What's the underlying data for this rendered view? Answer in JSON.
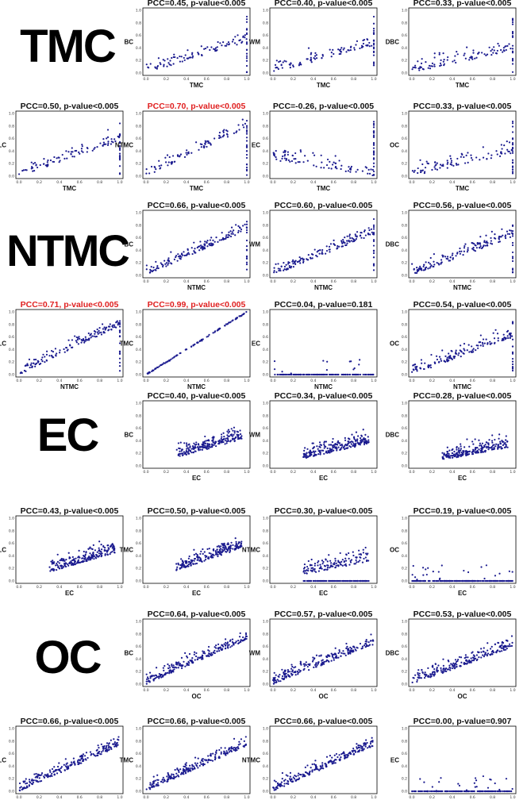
{
  "row_labels": [
    "TMC",
    "NTMC",
    "EC",
    "OC"
  ],
  "tick_labels": [
    "0.0",
    "0.2",
    "0.4",
    "0.6",
    "0.8",
    "1.0"
  ],
  "colors": {
    "point": "#1b1b8f",
    "title_default": "#111111",
    "title_highlight": "#e02020",
    "frame": "#000000"
  },
  "chart_data": [
    {
      "type": "scatter",
      "title": "PCC=0.45, p-value<0.005",
      "highlight": false,
      "xlabel": "TMC",
      "ylabel": "BC",
      "xlim": [
        0,
        1
      ],
      "ylim": [
        0,
        1
      ],
      "n": 110,
      "corr": 0.45,
      "cluster_x": 1.0,
      "cluster_share": 0.18,
      "seed": 1
    },
    {
      "type": "scatter",
      "title": "PCC=0.40, p-value<0.005",
      "highlight": false,
      "xlabel": "TMC",
      "ylabel": "WM",
      "xlim": [
        0,
        1
      ],
      "ylim": [
        0,
        1
      ],
      "n": 110,
      "corr": 0.4,
      "cluster_x": 1.0,
      "cluster_share": 0.2,
      "seed": 2
    },
    {
      "type": "scatter",
      "title": "PCC=0.33, p-value<0.005",
      "highlight": false,
      "xlabel": "TMC",
      "ylabel": "DBC",
      "xlim": [
        0,
        1
      ],
      "ylim": [
        0,
        1
      ],
      "n": 110,
      "corr": 0.33,
      "cluster_x": 1.0,
      "cluster_share": 0.18,
      "seed": 3
    },
    {
      "type": "scatter",
      "title": "PCC=0.50, p-value<0.005",
      "highlight": false,
      "xlabel": "TMC",
      "ylabel": "LC",
      "xlim": [
        0,
        1
      ],
      "ylim": [
        0,
        1
      ],
      "n": 110,
      "corr": 0.5,
      "cluster_x": 1.0,
      "cluster_share": 0.2,
      "seed": 4
    },
    {
      "type": "scatter",
      "title": "PCC=0.70, p-value<0.005",
      "highlight": true,
      "xlabel": "TMC",
      "ylabel": "NTMC",
      "xlim": [
        0,
        1
      ],
      "ylim": [
        0,
        1
      ],
      "n": 110,
      "corr": 0.7,
      "cluster_x": 1.0,
      "cluster_share": 0.2,
      "seed": 5
    },
    {
      "type": "scatter",
      "title": "PCC=-0.26, p-value<0.005",
      "highlight": false,
      "xlabel": "TMC",
      "ylabel": "EC",
      "xlim": [
        0,
        1
      ],
      "ylim": [
        0,
        1
      ],
      "n": 110,
      "corr": -0.26,
      "cluster_x": 1.0,
      "cluster_share": 0.25,
      "seed": 6
    },
    {
      "type": "scatter",
      "title": "PCC=0.33, p-value<0.005",
      "highlight": false,
      "xlabel": "TMC",
      "ylabel": "OC",
      "xlim": [
        0,
        1
      ],
      "ylim": [
        0,
        1
      ],
      "n": 110,
      "corr": 0.33,
      "cluster_x": 1.0,
      "cluster_share": 0.22,
      "seed": 7
    },
    {
      "type": "scatter",
      "title": "PCC=0.66, p-value<0.005",
      "highlight": false,
      "xlabel": "NTMC",
      "ylabel": "BC",
      "xlim": [
        0,
        1
      ],
      "ylim": [
        0,
        1
      ],
      "n": 160,
      "corr": 0.66,
      "cluster_x": 1.0,
      "cluster_share": 0.1,
      "seed": 11
    },
    {
      "type": "scatter",
      "title": "PCC=0.60, p-value<0.005",
      "highlight": false,
      "xlabel": "NTMC",
      "ylabel": "WM",
      "xlim": [
        0,
        1
      ],
      "ylim": [
        0,
        1
      ],
      "n": 160,
      "corr": 0.6,
      "cluster_x": 1.0,
      "cluster_share": 0.12,
      "seed": 12
    },
    {
      "type": "scatter",
      "title": "PCC=0.56, p-value<0.005",
      "highlight": false,
      "xlabel": "NTMC",
      "ylabel": "DBC",
      "xlim": [
        0,
        1
      ],
      "ylim": [
        0,
        1
      ],
      "n": 160,
      "corr": 0.56,
      "cluster_x": 1.0,
      "cluster_share": 0.1,
      "seed": 13
    },
    {
      "type": "scatter",
      "title": "PCC=0.71, p-value<0.005",
      "highlight": true,
      "xlabel": "NTMC",
      "ylabel": "LC",
      "xlim": [
        0,
        1
      ],
      "ylim": [
        0,
        1
      ],
      "n": 160,
      "corr": 0.71,
      "cluster_x": 1.0,
      "cluster_share": 0.12,
      "seed": 14
    },
    {
      "type": "scatter",
      "title": "PCC=0.99, p-value<0.005",
      "highlight": true,
      "xlabel": "NTMC",
      "ylabel": "TMC",
      "xlim": [
        0,
        1
      ],
      "ylim": [
        0,
        1
      ],
      "n": 110,
      "corr": 0.99,
      "cluster_x": null,
      "cluster_share": 0,
      "seed": 15
    },
    {
      "type": "scatter",
      "title": "PCC=0.04, p-value=0.181",
      "highlight": false,
      "xlabel": "NTMC",
      "ylabel": "EC",
      "xlim": [
        0,
        1
      ],
      "ylim": [
        0,
        1
      ],
      "n": 140,
      "corr": 0.0,
      "flat": true,
      "cluster_x": null,
      "cluster_share": 0,
      "seed": 16
    },
    {
      "type": "scatter",
      "title": "PCC=0.54, p-value<0.005",
      "highlight": false,
      "xlabel": "NTMC",
      "ylabel": "OC",
      "xlim": [
        0,
        1
      ],
      "ylim": [
        0,
        1
      ],
      "n": 160,
      "corr": 0.54,
      "cluster_x": 1.0,
      "cluster_share": 0.1,
      "seed": 17
    },
    {
      "type": "scatter",
      "title": "PCC=0.40, p-value<0.005",
      "highlight": false,
      "xlabel": "EC",
      "ylabel": "BC",
      "xlim": [
        0,
        1
      ],
      "ylim": [
        0,
        1
      ],
      "n": 220,
      "corr": 0.4,
      "cluster_x": null,
      "cluster_share": 0,
      "seed": 21
    },
    {
      "type": "scatter",
      "title": "PCC=0.34, p-value<0.005",
      "highlight": false,
      "xlabel": "EC",
      "ylabel": "WM",
      "xlim": [
        0,
        1
      ],
      "ylim": [
        0,
        1
      ],
      "n": 220,
      "corr": 0.34,
      "cluster_x": null,
      "cluster_share": 0,
      "seed": 22
    },
    {
      "type": "scatter",
      "title": "PCC=0.28, p-value<0.005",
      "highlight": false,
      "xlabel": "EC",
      "ylabel": "DBC",
      "xlim": [
        0,
        1
      ],
      "ylim": [
        0,
        1
      ],
      "n": 220,
      "corr": 0.28,
      "cluster_x": null,
      "cluster_share": 0,
      "seed": 23
    },
    {
      "type": "scatter",
      "title": "PCC=0.43, p-value<0.005",
      "highlight": false,
      "xlabel": "EC",
      "ylabel": "LC",
      "xlim": [
        0,
        1
      ],
      "ylim": [
        0,
        1
      ],
      "n": 220,
      "corr": 0.43,
      "cluster_x": null,
      "cluster_share": 0,
      "seed": 24
    },
    {
      "type": "scatter",
      "title": "PCC=0.50, p-value<0.005",
      "highlight": false,
      "xlabel": "EC",
      "ylabel": "TMC",
      "xlim": [
        0,
        1
      ],
      "ylim": [
        0,
        1
      ],
      "n": 220,
      "corr": 0.5,
      "cluster_x": null,
      "cluster_share": 0,
      "seed": 25
    },
    {
      "type": "scatter",
      "title": "PCC=0.30, p-value<0.005",
      "highlight": false,
      "xlabel": "EC",
      "ylabel": "NTMC",
      "xlim": [
        0,
        1
      ],
      "ylim": [
        0,
        1
      ],
      "n": 220,
      "corr": 0.3,
      "floor": true,
      "cluster_x": null,
      "cluster_share": 0,
      "seed": 26
    },
    {
      "type": "scatter",
      "title": "PCC=0.19, p-value<0.005",
      "highlight": false,
      "xlabel": "EC",
      "ylabel": "OC",
      "xlim": [
        0,
        1
      ],
      "ylim": [
        0,
        1
      ],
      "n": 200,
      "corr": 0.19,
      "flat": true,
      "cluster_x": null,
      "cluster_share": 0,
      "seed": 27
    },
    {
      "type": "scatter",
      "title": "PCC=0.64, p-value<0.005",
      "highlight": false,
      "xlabel": "OC",
      "ylabel": "BC",
      "xlim": [
        0,
        1
      ],
      "ylim": [
        0,
        1
      ],
      "n": 220,
      "corr": 0.64,
      "cluster_x": null,
      "cluster_share": 0,
      "seed": 31
    },
    {
      "type": "scatter",
      "title": "PCC=0.57, p-value<0.005",
      "highlight": false,
      "xlabel": "OC",
      "ylabel": "WM",
      "xlim": [
        0,
        1
      ],
      "ylim": [
        0,
        1
      ],
      "n": 220,
      "corr": 0.57,
      "cluster_x": null,
      "cluster_share": 0,
      "seed": 32
    },
    {
      "type": "scatter",
      "title": "PCC=0.53, p-value<0.005",
      "highlight": false,
      "xlabel": "OC",
      "ylabel": "DBC",
      "xlim": [
        0,
        1
      ],
      "ylim": [
        0,
        1
      ],
      "n": 220,
      "corr": 0.53,
      "cluster_x": null,
      "cluster_share": 0,
      "seed": 33
    },
    {
      "type": "scatter",
      "title": "PCC=0.66, p-value<0.005",
      "highlight": false,
      "xlabel": "OC",
      "ylabel": "LC",
      "xlim": [
        0,
        1
      ],
      "ylim": [
        0,
        1
      ],
      "n": 220,
      "corr": 0.66,
      "cluster_x": null,
      "cluster_share": 0,
      "seed": 34
    },
    {
      "type": "scatter",
      "title": "PCC=0.66, p-value<0.005",
      "highlight": false,
      "xlabel": "OC",
      "ylabel": "TMC",
      "xlim": [
        0,
        1
      ],
      "ylim": [
        0,
        1
      ],
      "n": 220,
      "corr": 0.66,
      "cluster_x": null,
      "cluster_share": 0,
      "seed": 35
    },
    {
      "type": "scatter",
      "title": "PCC=0.66, p-value<0.005",
      "highlight": false,
      "xlabel": "OC",
      "ylabel": "NTMC",
      "xlim": [
        0,
        1
      ],
      "ylim": [
        0,
        1
      ],
      "n": 220,
      "corr": 0.66,
      "cluster_x": null,
      "cluster_share": 0,
      "seed": 36
    },
    {
      "type": "scatter",
      "title": "PCC=0.00, p-value=0.907",
      "highlight": false,
      "xlabel": "OC",
      "ylabel": "EC",
      "xlim": [
        0,
        1
      ],
      "ylim": [
        0,
        1
      ],
      "n": 200,
      "corr": 0.0,
      "flat": true,
      "cluster_x": null,
      "cluster_share": 0,
      "seed": 37
    }
  ]
}
